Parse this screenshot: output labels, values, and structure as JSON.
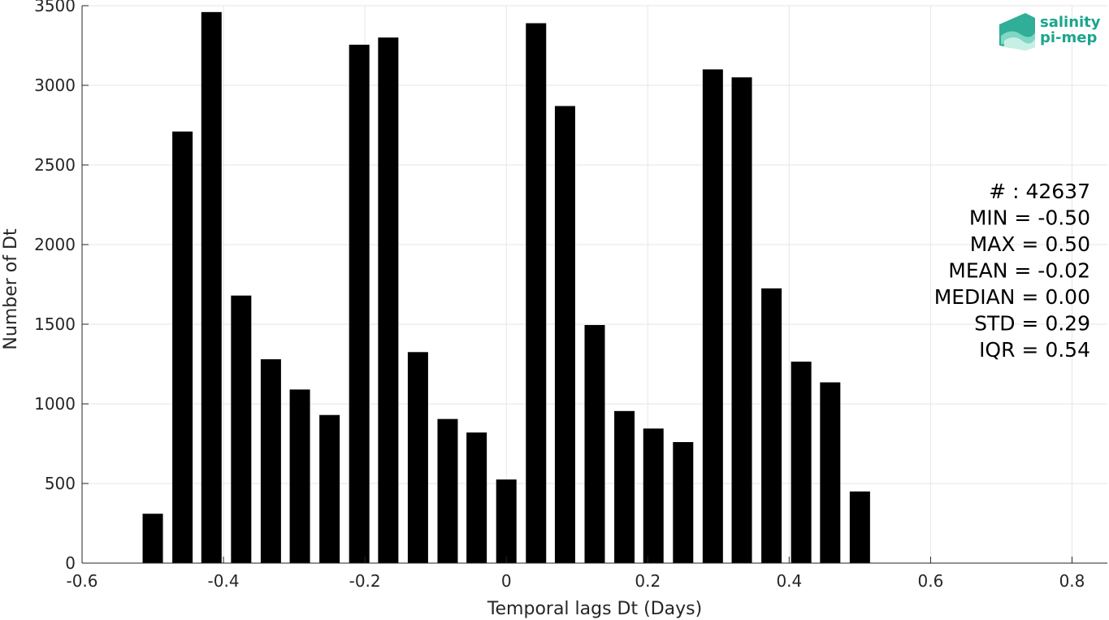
{
  "chart_data": {
    "type": "bar",
    "xlabel": "Temporal lags Dt (Days)",
    "ylabel": "Number of Dt",
    "xlim": [
      -0.6,
      0.85
    ],
    "ylim": [
      0,
      3500
    ],
    "x_ticks": [
      -0.6,
      -0.4,
      -0.2,
      0,
      0.2,
      0.4,
      0.6,
      0.8
    ],
    "x_tick_labels": [
      "-0.6",
      "-0.4",
      "-0.2",
      "0",
      "0.2",
      "0.4",
      "0.6",
      "0.8"
    ],
    "y_ticks": [
      0,
      500,
      1000,
      1500,
      2000,
      2500,
      3000,
      3500
    ],
    "y_tick_labels": [
      "0",
      "500",
      "1000",
      "1500",
      "2000",
      "2500",
      "3000",
      "3500"
    ],
    "grid": true,
    "bar_color": "#000000",
    "bars": [
      {
        "x": -0.5,
        "value": 310
      },
      {
        "x": -0.458,
        "value": 2710
      },
      {
        "x": -0.417,
        "value": 3460
      },
      {
        "x": -0.375,
        "value": 1680
      },
      {
        "x": -0.333,
        "value": 1280
      },
      {
        "x": -0.292,
        "value": 1090
      },
      {
        "x": -0.25,
        "value": 930
      },
      {
        "x": -0.208,
        "value": 3255
      },
      {
        "x": -0.167,
        "value": 3300
      },
      {
        "x": -0.125,
        "value": 1325
      },
      {
        "x": -0.083,
        "value": 905
      },
      {
        "x": -0.042,
        "value": 820
      },
      {
        "x": 0.0,
        "value": 525
      },
      {
        "x": 0.042,
        "value": 3390
      },
      {
        "x": 0.083,
        "value": 2870
      },
      {
        "x": 0.125,
        "value": 1495
      },
      {
        "x": 0.167,
        "value": 955
      },
      {
        "x": 0.208,
        "value": 845
      },
      {
        "x": 0.25,
        "value": 760
      },
      {
        "x": 0.292,
        "value": 3100
      },
      {
        "x": 0.333,
        "value": 3050
      },
      {
        "x": 0.375,
        "value": 1725
      },
      {
        "x": 0.417,
        "value": 1265
      },
      {
        "x": 0.458,
        "value": 1135
      },
      {
        "x": 0.5,
        "value": 450
      }
    ],
    "stats": [
      "# : 42637",
      "MIN = -0.50",
      "MAX =  0.50",
      "MEAN = -0.02",
      "MEDIAN = 0.00",
      "STD = 0.29",
      "IQR = 0.54"
    ]
  },
  "logo": {
    "line1": "salinity",
    "line2": "pi-mep",
    "color": "#1aa58c"
  }
}
